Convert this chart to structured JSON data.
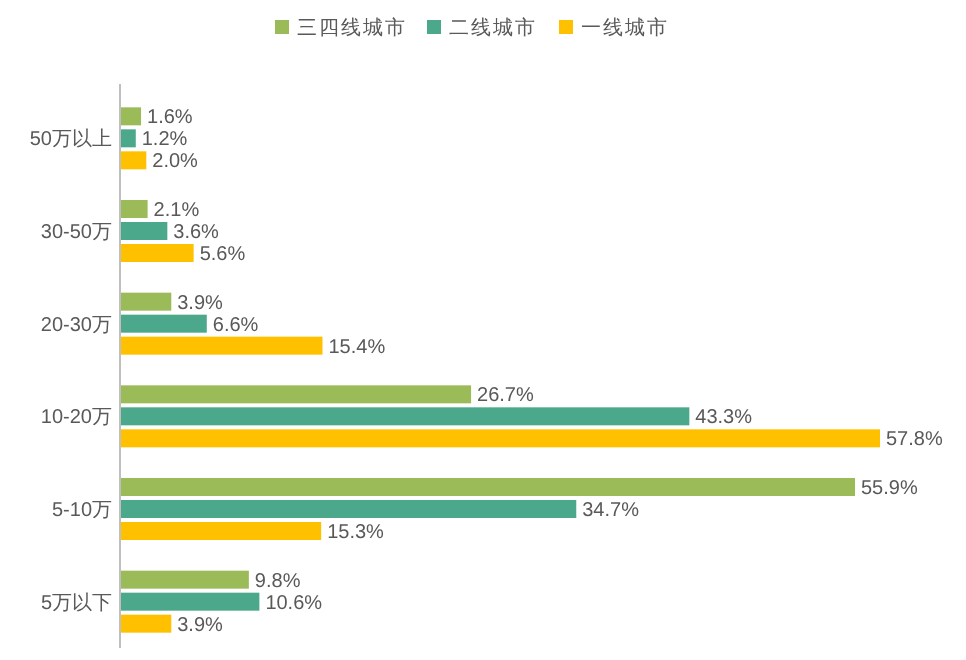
{
  "chart_data": {
    "type": "bar",
    "orientation": "horizontal",
    "legend": "top",
    "categories": [
      "50万以上",
      "30-50万",
      "20-30万",
      "10-20万",
      "5-10万",
      "5万以下"
    ],
    "series": [
      {
        "name": "三四线城市",
        "color": "#9bbb59",
        "values": [
          1.6,
          2.1,
          3.9,
          26.7,
          55.9,
          9.8
        ],
        "value_labels": [
          "1.6%",
          "2.1%",
          "3.9%",
          "26.7%",
          "55.9%",
          "9.8%"
        ]
      },
      {
        "name": "二线城市",
        "color": "#4ca88a",
        "values": [
          1.2,
          3.6,
          6.6,
          43.3,
          34.7,
          10.6
        ],
        "value_labels": [
          "1.2%",
          "3.6%",
          "6.6%",
          "43.3%",
          "34.7%",
          "10.6%"
        ]
      },
      {
        "name": "一线城市",
        "color": "#ffc000",
        "values": [
          2.0,
          5.6,
          15.4,
          57.8,
          15.3,
          3.9
        ],
        "value_labels": [
          "2.0%",
          "5.6%",
          "15.4%",
          "57.8%",
          "15.3%",
          "3.9%"
        ]
      }
    ]
  }
}
